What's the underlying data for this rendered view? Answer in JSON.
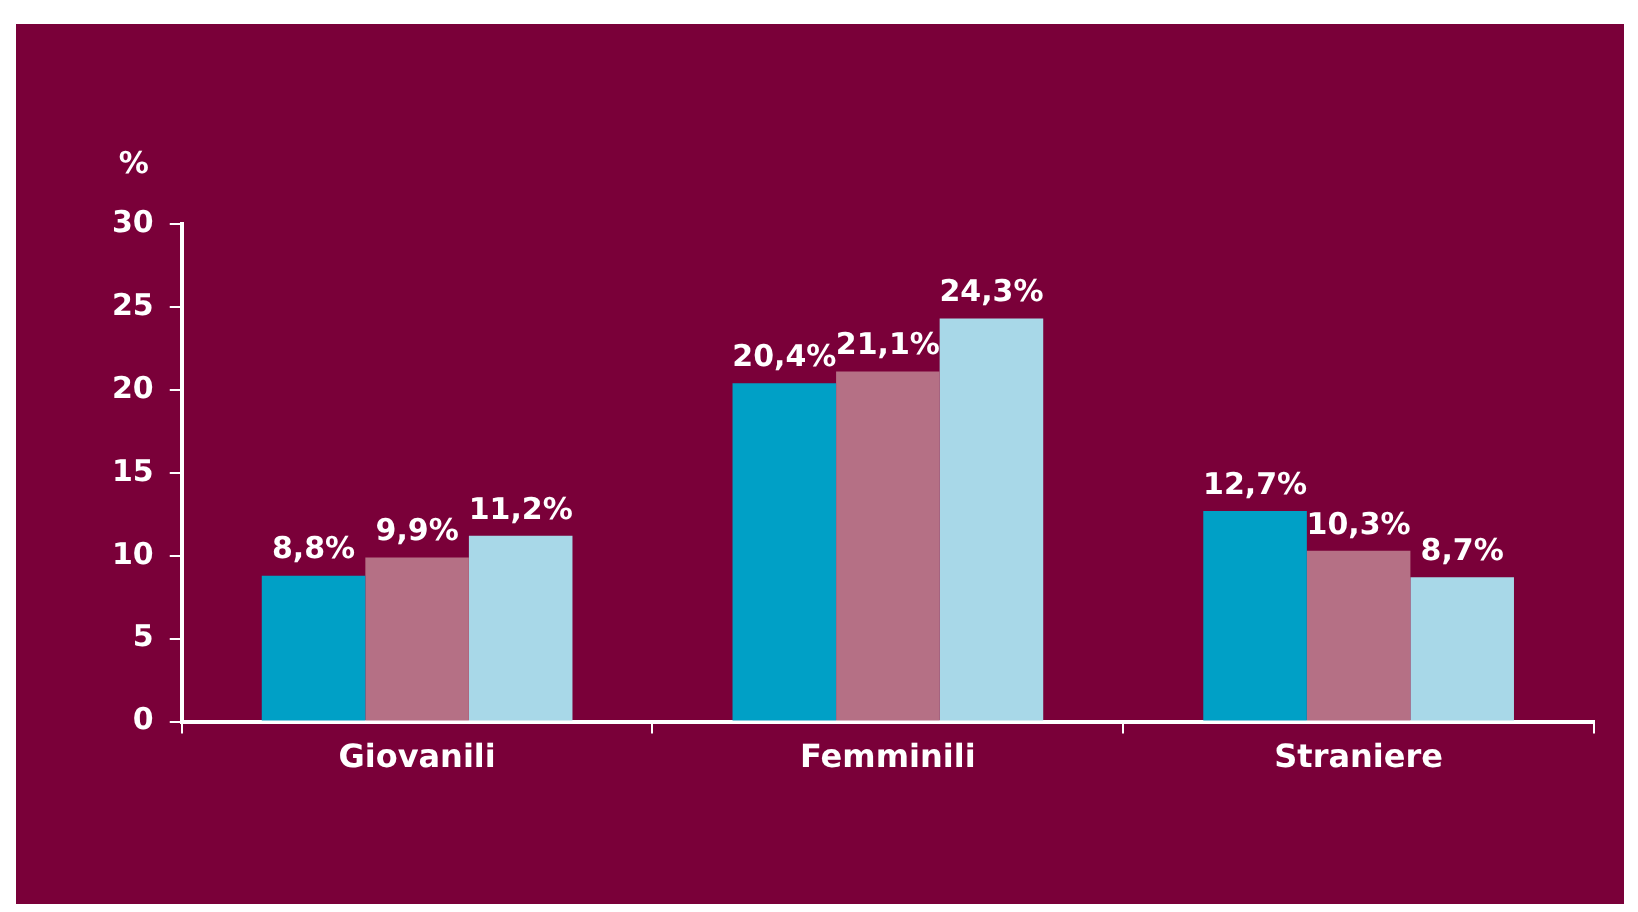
{
  "chart_data": {
    "type": "bar",
    "ylabel": "%",
    "categories": [
      "Giovanili",
      "Femminili",
      "Straniere"
    ],
    "series": [
      {
        "color": "#00a0c6",
        "values": [
          8.8,
          20.4,
          12.7
        ],
        "value_labels": [
          "8,8%",
          "20,4%",
          "12,7%"
        ]
      },
      {
        "color": "#b57085",
        "values": [
          9.9,
          21.1,
          10.3
        ],
        "value_labels": [
          "9,9%",
          "21,1%",
          "10,3%"
        ]
      },
      {
        "color": "#a8d8e8",
        "values": [
          11.2,
          24.3,
          8.7
        ],
        "value_labels": [
          "11,2%",
          "24,3%",
          "8,7%"
        ]
      }
    ],
    "ylim": [
      0,
      30
    ],
    "yticks": [
      0,
      5,
      10,
      15,
      20,
      25,
      30
    ],
    "grid": false,
    "legend": false
  }
}
